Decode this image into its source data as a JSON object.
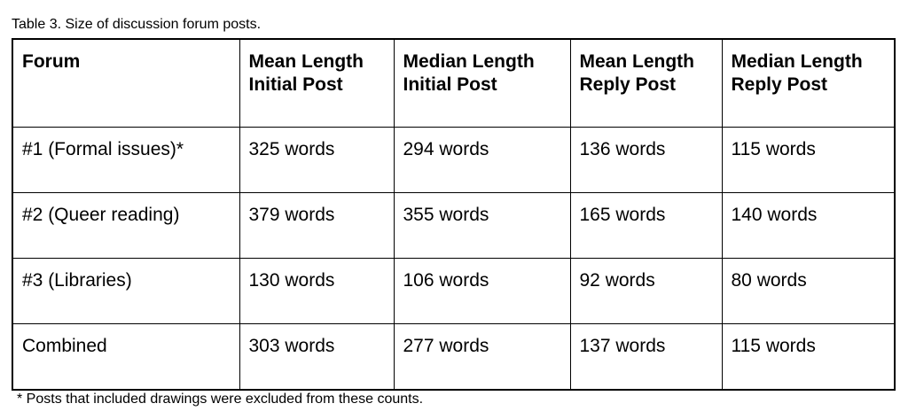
{
  "caption": "Table 3. Size of discussion forum posts.",
  "table": {
    "headers": [
      "Forum",
      "Mean Length Initial Post",
      "Median Length Initial Post",
      "Mean Length Reply Post",
      "Median Length Reply Post"
    ],
    "rows": [
      [
        "#1 (Formal issues)*",
        "325 words",
        "294 words",
        "136 words",
        "115 words"
      ],
      [
        "#2 (Queer reading)",
        "379 words",
        "355 words",
        "165 words",
        "140 words"
      ],
      [
        "#3 (Libraries)",
        "130 words",
        "106 words",
        "92 words",
        "80 words"
      ],
      [
        "Combined",
        "303 words",
        "277 words",
        "137 words",
        "115 words"
      ]
    ]
  },
  "footnote": "* Posts that included drawings were excluded from these counts."
}
